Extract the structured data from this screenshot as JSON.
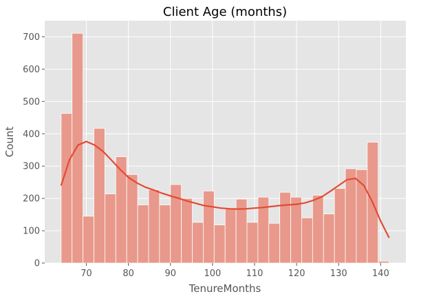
{
  "chart_data": {
    "type": "bar",
    "title": "Client Age (months)",
    "xlabel": "TenureMonths",
    "ylabel": "Count",
    "xlim": [
      60.1,
      146.0
    ],
    "ylim": [
      0,
      750
    ],
    "xticks": [
      70,
      80,
      90,
      100,
      110,
      120,
      130,
      140
    ],
    "yticks": [
      0,
      100,
      200,
      300,
      400,
      500,
      600,
      700
    ],
    "grid": true,
    "colors": {
      "background": "#e5e5e5",
      "grid": "#ffffff",
      "bar": "#e8998b",
      "line": "#e24a33",
      "text": "#555555",
      "title": "#000000"
    },
    "bins": [
      {
        "x0": 64.0,
        "x1": 66.6,
        "count": 463
      },
      {
        "x0": 66.6,
        "x1": 69.2,
        "count": 711
      },
      {
        "x0": 69.2,
        "x1": 71.8,
        "count": 145
      },
      {
        "x0": 71.8,
        "x1": 74.4,
        "count": 417
      },
      {
        "x0": 74.4,
        "x1": 77.0,
        "count": 214
      },
      {
        "x0": 77.0,
        "x1": 79.6,
        "count": 329
      },
      {
        "x0": 79.6,
        "x1": 82.2,
        "count": 274
      },
      {
        "x0": 82.2,
        "x1": 84.8,
        "count": 180
      },
      {
        "x0": 84.8,
        "x1": 87.4,
        "count": 227
      },
      {
        "x0": 87.4,
        "x1": 90.0,
        "count": 180
      },
      {
        "x0": 90.0,
        "x1": 92.6,
        "count": 243
      },
      {
        "x0": 92.6,
        "x1": 95.2,
        "count": 200
      },
      {
        "x0": 95.2,
        "x1": 97.8,
        "count": 126
      },
      {
        "x0": 97.8,
        "x1": 100.4,
        "count": 223
      },
      {
        "x0": 100.4,
        "x1": 103.0,
        "count": 118
      },
      {
        "x0": 103.0,
        "x1": 105.6,
        "count": 167
      },
      {
        "x0": 105.6,
        "x1": 108.2,
        "count": 198
      },
      {
        "x0": 108.2,
        "x1": 110.8,
        "count": 126
      },
      {
        "x0": 110.8,
        "x1": 113.4,
        "count": 204
      },
      {
        "x0": 113.4,
        "x1": 116.0,
        "count": 123
      },
      {
        "x0": 116.0,
        "x1": 118.6,
        "count": 219
      },
      {
        "x0": 118.6,
        "x1": 121.2,
        "count": 204
      },
      {
        "x0": 121.2,
        "x1": 123.8,
        "count": 140
      },
      {
        "x0": 123.8,
        "x1": 126.4,
        "count": 210
      },
      {
        "x0": 126.4,
        "x1": 129.0,
        "count": 152
      },
      {
        "x0": 129.0,
        "x1": 131.6,
        "count": 231
      },
      {
        "x0": 131.6,
        "x1": 134.2,
        "count": 292
      },
      {
        "x0": 134.2,
        "x1": 136.8,
        "count": 289
      },
      {
        "x0": 136.8,
        "x1": 139.4,
        "count": 374
      },
      {
        "x0": 139.4,
        "x1": 142.0,
        "count": 6
      }
    ],
    "kde": {
      "x": [
        64.0,
        66.0,
        68.0,
        70.0,
        72.0,
        74.0,
        76.0,
        78.0,
        80.0,
        82.0,
        84.0,
        86.0,
        88.0,
        90.0,
        92.0,
        94.0,
        96.0,
        98.0,
        100.0,
        102.0,
        104.0,
        106.0,
        108.0,
        110.0,
        112.0,
        114.0,
        116.0,
        118.0,
        120.0,
        122.0,
        124.0,
        126.0,
        128.0,
        130.0,
        132.0,
        134.0,
        136.0,
        138.0,
        140.0,
        142.0
      ],
      "y": [
        240,
        320,
        365,
        376,
        365,
        345,
        318,
        290,
        265,
        248,
        235,
        226,
        216,
        208,
        200,
        192,
        185,
        178,
        174,
        170,
        168,
        167,
        168,
        170,
        172,
        175,
        178,
        180,
        182,
        186,
        194,
        205,
        222,
        240,
        258,
        262,
        240,
        190,
        130,
        78
      ]
    }
  }
}
